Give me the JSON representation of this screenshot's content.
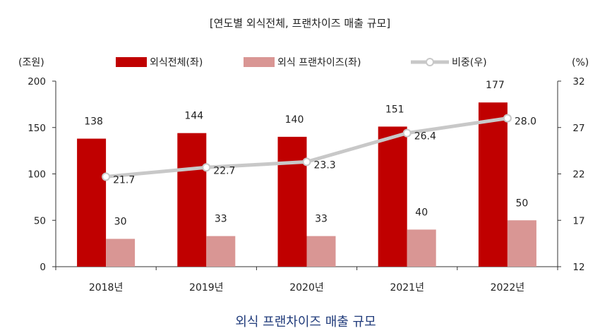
{
  "chart_data": {
    "type": "bar",
    "title": "[연도별 외식전체, 프랜차이즈 매출 규모]",
    "caption": "외식 프랜차이즈 매출 규모",
    "categories": [
      "2018년",
      "2019년",
      "2020년",
      "2021년",
      "2022년"
    ],
    "y_left": {
      "unit_label": "(조원)",
      "ylim": [
        0,
        200
      ],
      "ticks": [
        "0",
        "50",
        "100",
        "150",
        "200"
      ]
    },
    "y_right": {
      "unit_label": "(%)",
      "ylim": [
        12,
        32
      ],
      "ticks": [
        "12",
        "17",
        "22",
        "27",
        "32"
      ]
    },
    "series": [
      {
        "name": "외식전체(좌)",
        "kind": "bar",
        "axis": "left",
        "color": "#c00000",
        "values": [
          138,
          144,
          140,
          151,
          177
        ],
        "labels": [
          "138",
          "144",
          "140",
          "151",
          "177"
        ]
      },
      {
        "name": "외식 프랜차이즈(좌)",
        "kind": "bar",
        "axis": "left",
        "color": "#d99694",
        "values": [
          30,
          33,
          33,
          40,
          50
        ],
        "labels": [
          "30",
          "33",
          "33",
          "40",
          "50"
        ]
      },
      {
        "name": "비중(우)",
        "kind": "line",
        "axis": "right",
        "color": "#c8c8c8",
        "values": [
          21.7,
          22.7,
          23.3,
          26.4,
          28.0
        ],
        "labels": [
          "21.7",
          "22.7",
          "23.3",
          "26.4",
          "28.0"
        ]
      }
    ],
    "legend_position": "top",
    "grid": false
  }
}
